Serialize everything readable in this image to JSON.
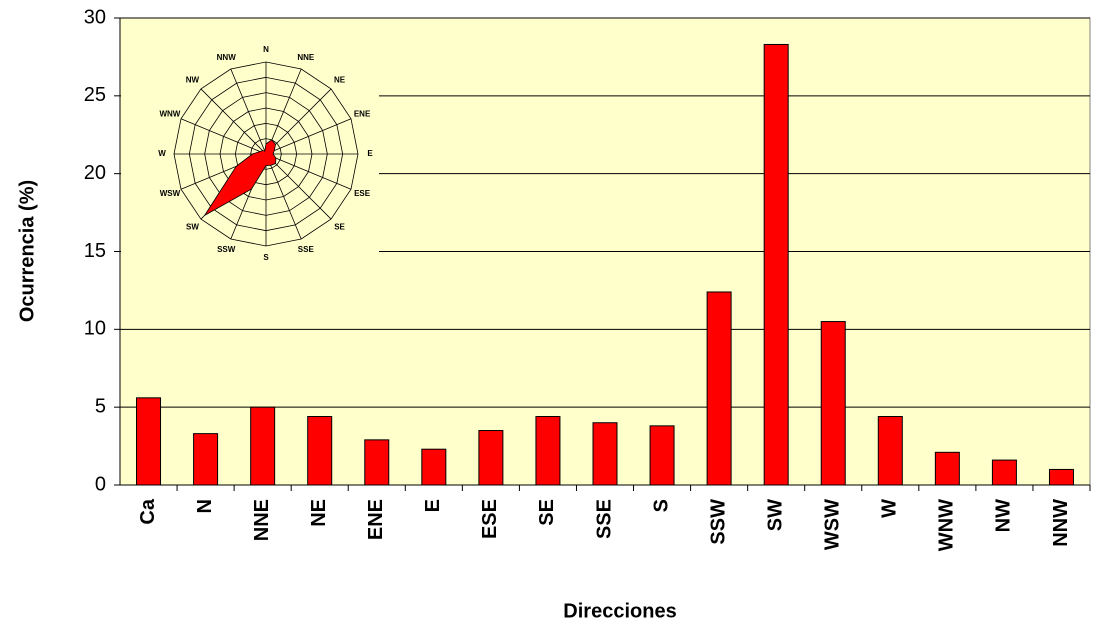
{
  "chart_data": [
    {
      "type": "bar",
      "x_label": "Direcciones",
      "y_label": "Ocurrencia (%)",
      "categories": [
        "Ca",
        "N",
        "NNE",
        "NE",
        "ENE",
        "E",
        "ESE",
        "SE",
        "SSE",
        "S",
        "SSW",
        "SW",
        "WSW",
        "W",
        "WNW",
        "NW",
        "NNW"
      ],
      "values": [
        5.6,
        3.3,
        5.0,
        4.4,
        2.9,
        2.3,
        3.5,
        4.4,
        4.0,
        3.8,
        12.4,
        28.3,
        10.5,
        4.4,
        2.1,
        1.6,
        1.0
      ],
      "color": "#ff0000",
      "ylim": [
        0,
        30
      ],
      "yticks": [
        0,
        5,
        10,
        15,
        20,
        25,
        30
      ],
      "grid": true
    },
    {
      "type": "radar",
      "categories": [
        "N",
        "NNE",
        "NE",
        "ENE",
        "E",
        "ESE",
        "SE",
        "SSE",
        "S",
        "SSW",
        "SW",
        "WSW",
        "W",
        "WNW",
        "NW",
        "NNW"
      ],
      "values": [
        3.3,
        5.0,
        4.4,
        2.9,
        2.3,
        3.5,
        4.4,
        4.0,
        3.8,
        12.4,
        28.3,
        10.5,
        4.4,
        2.1,
        1.6,
        1.0
      ],
      "color": "#ff0000",
      "rlim": [
        0,
        30
      ],
      "rticks": [
        5,
        10,
        15,
        20,
        25,
        30
      ],
      "grid": true
    }
  ]
}
